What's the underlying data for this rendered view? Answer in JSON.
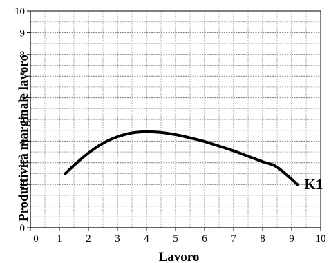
{
  "chart_data": {
    "type": "line",
    "xlabel": "Lavoro",
    "ylabel": "Produttività marginale lavoro",
    "xlim": [
      0,
      10
    ],
    "ylim": [
      0,
      10
    ],
    "xticks": [
      0,
      1,
      2,
      3,
      4,
      5,
      6,
      7,
      8,
      9,
      10
    ],
    "yticks": [
      0,
      1,
      2,
      3,
      4,
      5,
      6,
      7,
      8,
      9,
      10
    ],
    "grid": true,
    "minor_grid_step": 0.5,
    "series": [
      {
        "name": "K1",
        "color": "#000000",
        "x": [
          1.2,
          1.6,
          2.0,
          2.5,
          3.0,
          3.5,
          4.0,
          4.5,
          5.0,
          5.5,
          6.0,
          6.5,
          7.0,
          7.5,
          8.0,
          8.5,
          9.2
        ],
        "y": [
          2.5,
          3.0,
          3.45,
          3.9,
          4.2,
          4.38,
          4.43,
          4.4,
          4.3,
          4.15,
          3.98,
          3.77,
          3.55,
          3.3,
          3.05,
          2.8,
          2.0
        ]
      }
    ]
  }
}
